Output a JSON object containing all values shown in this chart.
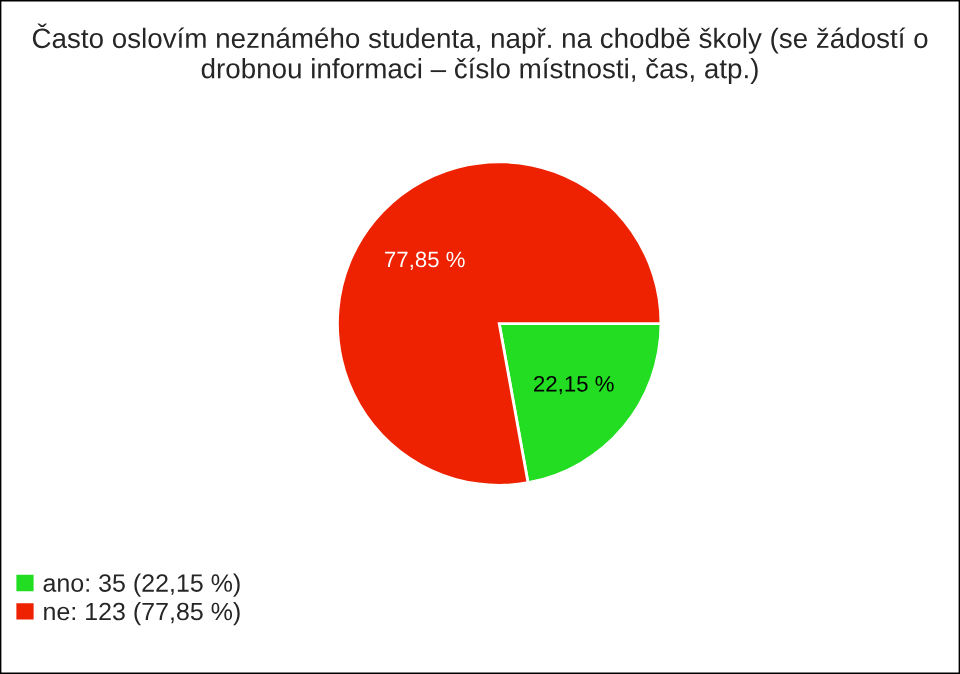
{
  "chart_data": {
    "type": "pie",
    "title": "Často oslovím neznámého studenta, např. na chodbě školy (se žádostí o drobnou informaci – číslo místnosti, čas, atp.)",
    "categories": [
      "ano: 35 (22,15 %)",
      "ne: 123 (77,85 %)"
    ],
    "values": [
      22.15,
      77.85
    ],
    "colors": [
      "#22dd22",
      "#ee2200"
    ],
    "value_labels": [
      "22,15 %",
      "77,85 %"
    ],
    "legend": "bottom left"
  }
}
